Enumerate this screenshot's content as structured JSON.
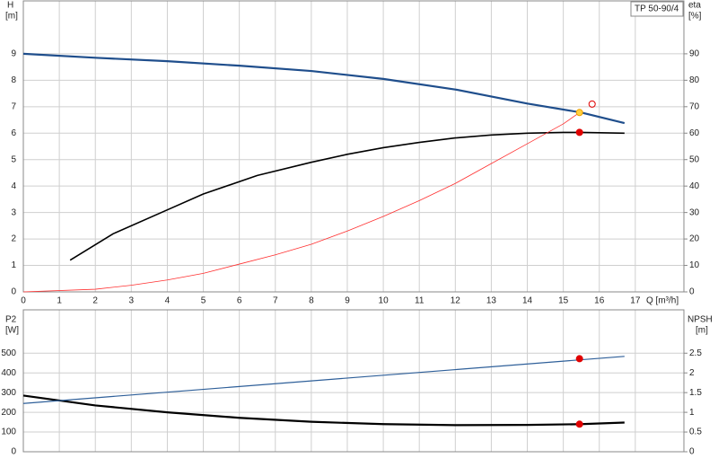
{
  "chart_data": [
    {
      "type": "line",
      "product_label": "TP 50-90/4",
      "ylabel": "H",
      "yunit": "[m]",
      "y2label": "eta",
      "y2unit": "[%]",
      "xlabel": "Q [m³/h]",
      "xlim": [
        0,
        18.35
      ],
      "xticks": [
        0,
        1,
        2,
        3,
        4,
        5,
        6,
        7,
        8,
        9,
        10,
        11,
        12,
        13,
        14,
        15,
        16,
        17
      ],
      "ylim": [
        0,
        11
      ],
      "yticks": [
        0,
        1,
        2,
        3,
        4,
        5,
        6,
        7,
        8,
        9
      ],
      "y2lim": [
        0,
        110
      ],
      "y2ticks": [
        0,
        10,
        20,
        30,
        40,
        50,
        60,
        70,
        80,
        90
      ],
      "grid": true,
      "series": [
        {
          "name": "H",
          "color": "#1f4e8c",
          "width": 2.2,
          "x": [
            0,
            2,
            4,
            6,
            8,
            10,
            12,
            14,
            15.5,
            16.7
          ],
          "values": [
            9,
            8.85,
            8.72,
            8.55,
            8.35,
            8.05,
            7.65,
            7.12,
            6.78,
            6.38
          ]
        },
        {
          "name": "eta",
          "color": "#000000",
          "width": 1.6,
          "axis": "y2",
          "x": [
            1.3,
            2.5,
            4,
            5,
            6.5,
            8,
            9,
            10,
            11,
            12,
            13,
            14,
            15,
            15.5,
            16.7
          ],
          "values": [
            12,
            22,
            31,
            37,
            44,
            49,
            52,
            54.5,
            56.5,
            58.2,
            59.3,
            60,
            60.3,
            60.3,
            60
          ]
        },
        {
          "name": "system",
          "color": "#ff3030",
          "width": 0.8,
          "x": [
            0,
            2,
            3,
            4,
            5,
            6,
            7,
            8,
            9,
            10,
            11,
            12,
            13,
            14,
            15,
            15.45
          ],
          "values": [
            0,
            0.1,
            0.25,
            0.45,
            0.7,
            1.05,
            1.4,
            1.8,
            2.3,
            2.85,
            3.45,
            4.1,
            4.85,
            5.6,
            6.35,
            6.78
          ]
        }
      ],
      "markers": [
        {
          "x": 15.45,
          "y": 6.78,
          "color": "#f0a000",
          "fill": "#ffd040"
        },
        {
          "x": 15.45,
          "y": 60.3,
          "axis": "y2",
          "color": "#e00000",
          "fill": "#e00000"
        },
        {
          "x": 15.8,
          "y": 7.1,
          "color": "#e00000",
          "fill": "none"
        }
      ]
    },
    {
      "type": "line",
      "ylabel": "P2",
      "yunit": "[W]",
      "y2label": "NPSH",
      "y2unit": "[m]",
      "xlim": [
        0,
        18.35
      ],
      "ylim": [
        0,
        720
      ],
      "yticks": [
        0,
        100,
        200,
        300,
        400,
        500
      ],
      "y2lim": [
        0,
        3.6
      ],
      "y2ticks": [
        0,
        0.5,
        1,
        1.5,
        2,
        2.5
      ],
      "grid": true,
      "series": [
        {
          "name": "P2",
          "color": "#000000",
          "width": 2.2,
          "x": [
            0,
            2,
            4,
            6,
            8,
            10,
            12,
            14,
            15.5,
            16.7
          ],
          "values": [
            285,
            235,
            200,
            172,
            152,
            140,
            135,
            136,
            140,
            148
          ]
        },
        {
          "name": "NPSH",
          "color": "#2e5f99",
          "width": 1.2,
          "axis": "y2",
          "x": [
            0,
            16.7
          ],
          "values": [
            1.225,
            2.42
          ]
        }
      ],
      "markers": [
        {
          "x": 15.45,
          "y": 140,
          "color": "#e00000",
          "fill": "#e00000"
        },
        {
          "x": 15.45,
          "y": 2.36,
          "axis": "y2",
          "color": "#e00000",
          "fill": "#e00000"
        }
      ]
    }
  ]
}
